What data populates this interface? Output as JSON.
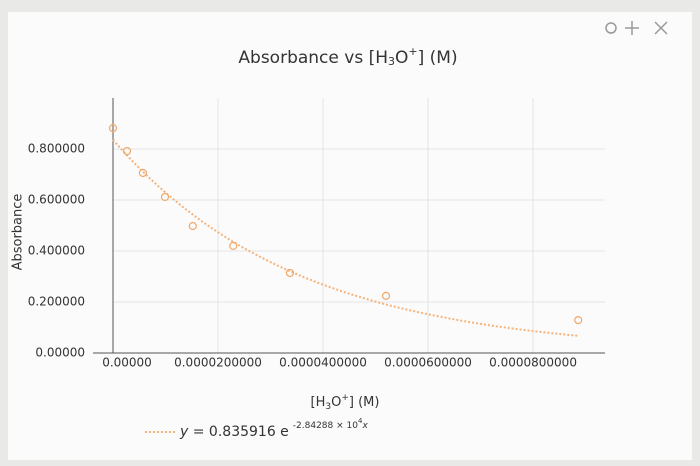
{
  "chart_data": {
    "type": "scatter",
    "title": [
      "Absorbance vs [H",
      "3",
      "O",
      "+",
      "] (M)"
    ],
    "x_label": [
      "[H",
      "3",
      "O",
      "+",
      "] (M)"
    ],
    "y_label": "Absorbance",
    "series": [
      {
        "color": "#f0a868",
        "x": [
          0,
          2.67e-06,
          5.7e-06,
          9.9e-06,
          1.52e-05,
          2.29e-05,
          3.37e-05,
          5.2e-05,
          8.86e-05
        ],
        "values": [
          0.882,
          0.792,
          0.706,
          0.612,
          0.498,
          0.42,
          0.314,
          0.224,
          0.129
        ]
      }
    ],
    "trendline": {
      "label": [
        "y",
        " = 0.835916 e",
        "-2.84288 × 10",
        "4",
        "x"
      ],
      "a": 0.835916,
      "b": -28428.8,
      "color": "#f5b37a"
    },
    "xlim": [
      0,
      9.37e-05
    ],
    "ylim": [
      0,
      1
    ],
    "xticks": [
      {
        "value": 0,
        "label": "0.00000"
      },
      {
        "value": 2e-05,
        "label": "0.0000200000"
      },
      {
        "value": 4e-05,
        "label": "0.0000400000"
      },
      {
        "value": 6e-05,
        "label": "0.0000600000"
      },
      {
        "value": 8e-05,
        "label": "0.0000800000"
      }
    ],
    "yticks": [
      {
        "value": 0,
        "label": "0.00000"
      },
      {
        "value": 0.2,
        "label": "0.200000"
      },
      {
        "value": 0.4,
        "label": "0.400000"
      },
      {
        "value": 0.6,
        "label": "0.600000"
      },
      {
        "value": 0.8,
        "label": "0.800000"
      }
    ],
    "grid": true
  }
}
